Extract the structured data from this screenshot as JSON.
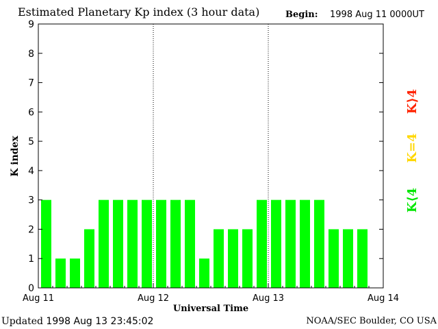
{
  "header": {
    "title": "Estimated Planetary Kp index (3 hour data)",
    "begin_label": "Begin:",
    "begin_value": "1998 Aug 11 0000UT"
  },
  "footer": {
    "updated_label": "Updated",
    "updated_value": "1998 Aug 13 23:45:02",
    "source": "NOAA/SEC Boulder, CO USA"
  },
  "legend": [
    {
      "label": "K⟨4",
      "color": "#00e600"
    },
    {
      "label": "K=4",
      "color": "#ffd700"
    },
    {
      "label": "K⟩4",
      "color": "#ff2200"
    }
  ],
  "colors": {
    "bar_low": "#00ff00",
    "bar_mid": "#ffff00",
    "bar_high": "#ff0000"
  },
  "chart_data": {
    "type": "bar",
    "title": "Estimated Planetary Kp index (3 hour data)",
    "xlabel": "Universal Time",
    "ylabel": "K index",
    "ylim": [
      0,
      9
    ],
    "yticks": [
      0,
      1,
      2,
      3,
      4,
      5,
      6,
      7,
      8,
      9
    ],
    "xticks": [
      "Aug 11",
      "Aug 12",
      "Aug 13",
      "Aug 14"
    ],
    "interval_hours": 3,
    "values": [
      3,
      1,
      1,
      2,
      3,
      3,
      3,
      3,
      3,
      3,
      3,
      1,
      2,
      2,
      2,
      3,
      3,
      3,
      3,
      3,
      2,
      2,
      2
    ],
    "grid": false,
    "day_separators": true
  }
}
